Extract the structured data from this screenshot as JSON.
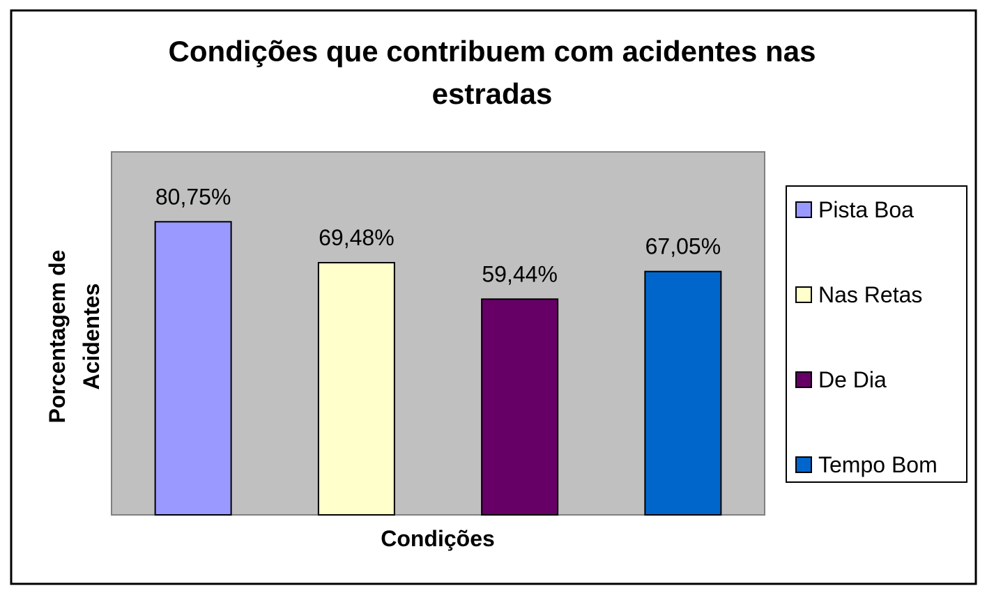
{
  "chart_data": {
    "type": "bar",
    "title": "Condições que contribuem com acidentes nas estradas",
    "title_lines": [
      "Condições que contribuem com acidentes nas",
      "estradas"
    ],
    "xlabel": "Condições",
    "ylabel": "Porcentagem de Acidentes",
    "ylabel_lines": [
      "Porcentagem de",
      "Acidentes"
    ],
    "ylim": [
      0,
      100
    ],
    "grid": false,
    "legend_position": "right",
    "categories": [
      "Pista Boa",
      "Nas Retas",
      "De Dia",
      "Tempo Bom"
    ],
    "values": [
      80.75,
      69.48,
      59.44,
      67.05
    ],
    "data_labels": [
      "80,75%",
      "69,48%",
      "59,44%",
      "67,05%"
    ],
    "colors": [
      "#9999FF",
      "#FFFFCC",
      "#660066",
      "#0066CC"
    ],
    "plot_background": "#C0C0C0"
  }
}
